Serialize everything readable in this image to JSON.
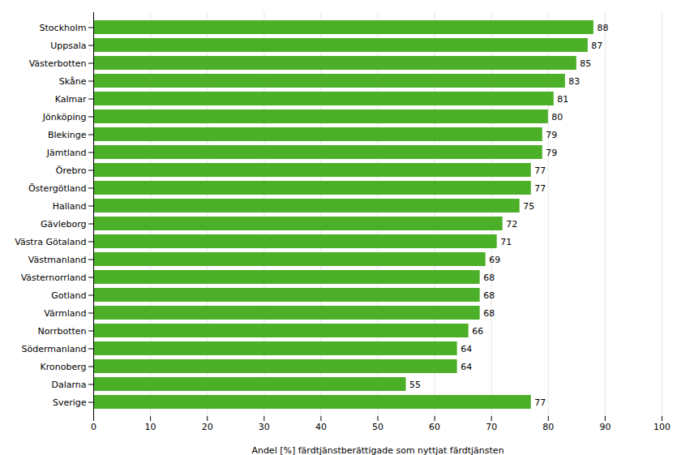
{
  "chart_data": {
    "type": "bar",
    "orientation": "horizontal",
    "categories": [
      "Sverige",
      "Dalarna",
      "Kronoberg",
      "Södermanland",
      "Norrbotten",
      "Värmland",
      "Gotland",
      "Västernorrland",
      "Västmanland",
      "Västra Götaland",
      "Gävleborg",
      "Halland",
      "Östergötland",
      "Örebro",
      "Jämtland",
      "Blekinge",
      "Jönköping",
      "Kalmar",
      "Skåne",
      "Västerbotten",
      "Uppsala",
      "Stockholm"
    ],
    "values": [
      77,
      55,
      64,
      64,
      66,
      68,
      68,
      68,
      69,
      71,
      72,
      75,
      77,
      77,
      79,
      79,
      80,
      81,
      83,
      85,
      87,
      88
    ],
    "color": "#4caf28",
    "xlabel": "Andel [%] färdtjänstberättigade som nyttjat färdtjänsten",
    "xlim": [
      0,
      100
    ],
    "xticks": [
      0,
      10,
      20,
      30,
      40,
      50,
      60,
      70,
      80,
      90,
      100
    ],
    "grid": true,
    "data_labels": true
  }
}
